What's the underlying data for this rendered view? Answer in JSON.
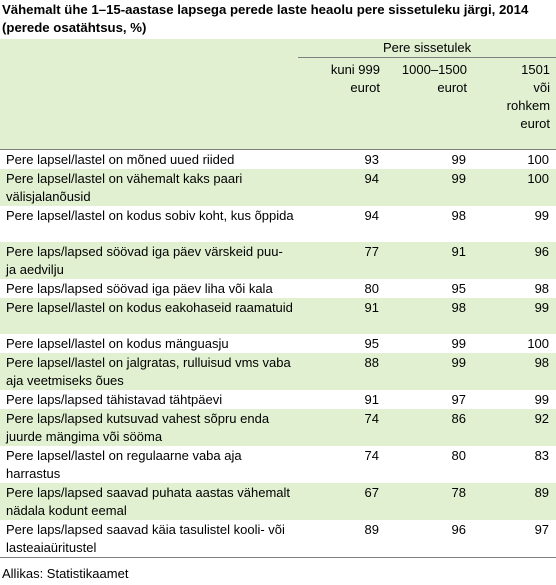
{
  "title": "Vähemalt ühe 1–15-aastase lapsega perede laste heaolu pere sissetuleku järgi, 2014 (perede osatähtsus, %)",
  "table": {
    "group_header": "Pere sissetulek",
    "columns": [
      "kuni 999 eurot",
      "1000–1500 eurot",
      "1501 või rohkem eurot"
    ],
    "rows": [
      {
        "label": "Pere lapsel/lastel on mõned uued riided",
        "values": [
          "93",
          "99",
          "100"
        ]
      },
      {
        "label": "Pere lapsel/lastel on vähemalt kaks paari välisjalanõusid",
        "values": [
          "94",
          "99",
          "100"
        ]
      },
      {
        "label": "Pere lapsel/lastel on kodus sobiv koht, kus õppida",
        "values": [
          "94",
          "98",
          "99"
        ]
      },
      {
        "label": "Pere laps/lapsed söövad iga päev värskeid puu- ja aedvilju",
        "values": [
          "77",
          "91",
          "96"
        ]
      },
      {
        "label": "Pere laps/lapsed söövad iga päev liha või kala",
        "values": [
          "80",
          "95",
          "98"
        ]
      },
      {
        "label": "Pere lapsel/lastel on kodus eakohaseid raamatuid",
        "values": [
          "91",
          "98",
          "99"
        ]
      },
      {
        "label": "Pere lapsel/lastel on kodus mänguasju",
        "values": [
          "95",
          "99",
          "100"
        ]
      },
      {
        "label": "Pere lapsel/lastel on jalgratas, rulluisud vms vaba aja veetmiseks õues",
        "values": [
          "88",
          "99",
          "98"
        ]
      },
      {
        "label": "Pere laps/lapsed tähistavad tähtpäevi",
        "values": [
          "91",
          "97",
          "99"
        ]
      },
      {
        "label": "Pere laps/lapsed kutsuvad vahest sõpru enda juurde mängima või sööma",
        "values": [
          "74",
          "86",
          "92"
        ]
      },
      {
        "label": "Pere lapsel/lastel on regulaarne vaba aja harrastus",
        "values": [
          "74",
          "80",
          "83"
        ]
      },
      {
        "label": "Pere laps/lapsed saavad puhata aastas vähemalt nädala kodunt eemal",
        "values": [
          "67",
          "78",
          "89"
        ]
      },
      {
        "label": "Pere laps/lapsed saavad käia tasulistel kooli- või lasteaiaüritustel",
        "values": [
          "89",
          "96",
          "97"
        ]
      }
    ]
  },
  "source": "Allikas: Statistikaamet",
  "colors": {
    "row_highlight": "#e2f0d2",
    "rule": "#7f7f7f"
  }
}
